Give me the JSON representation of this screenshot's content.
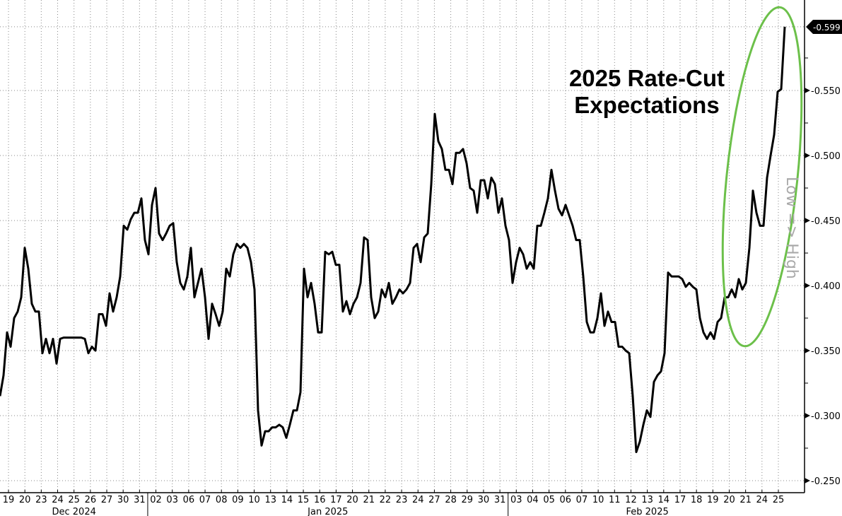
{
  "chart_data": {
    "type": "line",
    "title": "",
    "annotation": [
      "2025 Rate-Cut",
      "Expectations"
    ],
    "ylabel": "Low => High",
    "y_axis_side": "right",
    "y_inverted": true,
    "ylim": [
      -0.25,
      -0.605
    ],
    "yticks": [
      "-0.250",
      "-0.300",
      "-0.350",
      "-0.400",
      "-0.450",
      "-0.500",
      "-0.550"
    ],
    "last_value_label": "-0.599",
    "grid": true,
    "line_color": "#000000",
    "highlight_ellipse_color": "#6cc04a",
    "last_label_bg": "#000000",
    "x_start": "2024-12-19",
    "x_end": "2025-02-25",
    "x_tick_labels": [
      "19",
      "20",
      "23",
      "24",
      "25",
      "26",
      "27",
      "30",
      "31",
      "02",
      "03",
      "06",
      "07",
      "08",
      "09",
      "10",
      "13",
      "14",
      "15",
      "16",
      "17",
      "20",
      "21",
      "22",
      "23",
      "24",
      "27",
      "28",
      "29",
      "30",
      "31",
      "03",
      "04",
      "05",
      "06",
      "07",
      "10",
      "11",
      "12",
      "13",
      "14",
      "17",
      "18",
      "19",
      "20",
      "21",
      "24",
      "25"
    ],
    "months": [
      {
        "label": "Dec 2024",
        "first_tick": 0,
        "last_tick": 8
      },
      {
        "label": "Jan 2025",
        "first_tick": 9,
        "last_tick": 30
      },
      {
        "label": "Feb 2025",
        "first_tick": 31,
        "last_tick": 47
      }
    ],
    "series": [
      {
        "sampling": "evenly spaced intraday samples from x_start to x_end",
        "values": [
          -0.315,
          -0.331,
          -0.364,
          -0.353,
          -0.375,
          -0.38,
          -0.391,
          -0.429,
          -0.413,
          -0.386,
          -0.38,
          -0.38,
          -0.348,
          -0.359,
          -0.348,
          -0.359,
          -0.34,
          -0.359,
          -0.36,
          -0.36,
          -0.36,
          -0.36,
          -0.36,
          -0.36,
          -0.359,
          -0.348,
          -0.353,
          -0.35,
          -0.378,
          -0.378,
          -0.369,
          -0.394,
          -0.38,
          -0.391,
          -0.407,
          -0.446,
          -0.443,
          -0.451,
          -0.456,
          -0.456,
          -0.467,
          -0.435,
          -0.424,
          -0.462,
          -0.475,
          -0.44,
          -0.435,
          -0.44,
          -0.446,
          -0.448,
          -0.418,
          -0.402,
          -0.397,
          -0.407,
          -0.429,
          -0.391,
          -0.402,
          -0.413,
          -0.391,
          -0.359,
          -0.386,
          -0.378,
          -0.369,
          -0.38,
          -0.413,
          -0.407,
          -0.424,
          -0.432,
          -0.429,
          -0.432,
          -0.429,
          -0.418,
          -0.397,
          -0.304,
          -0.277,
          -0.288,
          -0.288,
          -0.291,
          -0.291,
          -0.293,
          -0.291,
          -0.283,
          -0.293,
          -0.304,
          -0.304,
          -0.318,
          -0.413,
          -0.391,
          -0.402,
          -0.386,
          -0.364,
          -0.364,
          -0.426,
          -0.424,
          -0.426,
          -0.416,
          -0.416,
          -0.38,
          -0.388,
          -0.378,
          -0.386,
          -0.391,
          -0.402,
          -0.437,
          -0.435,
          -0.391,
          -0.375,
          -0.38,
          -0.397,
          -0.391,
          -0.402,
          -0.386,
          -0.391,
          -0.397,
          -0.394,
          -0.397,
          -0.402,
          -0.429,
          -0.432,
          -0.418,
          -0.437,
          -0.44,
          -0.478,
          -0.532,
          -0.511,
          -0.505,
          -0.489,
          -0.489,
          -0.478,
          -0.502,
          -0.502,
          -0.505,
          -0.494,
          -0.475,
          -0.473,
          -0.456,
          -0.481,
          -0.481,
          -0.467,
          -0.483,
          -0.478,
          -0.456,
          -0.467,
          -0.446,
          -0.435,
          -0.402,
          -0.418,
          -0.429,
          -0.424,
          -0.413,
          -0.418,
          -0.413,
          -0.446,
          -0.446,
          -0.456,
          -0.467,
          -0.489,
          -0.473,
          -0.459,
          -0.454,
          -0.462,
          -0.454,
          -0.446,
          -0.435,
          -0.435,
          -0.407,
          -0.372,
          -0.364,
          -0.364,
          -0.375,
          -0.394,
          -0.369,
          -0.38,
          -0.372,
          -0.372,
          -0.353,
          -0.353,
          -0.35,
          -0.348,
          -0.315,
          -0.272,
          -0.28,
          -0.293,
          -0.304,
          -0.299,
          -0.326,
          -0.331,
          -0.334,
          -0.348,
          -0.41,
          -0.407,
          -0.407,
          -0.407,
          -0.405,
          -0.399,
          -0.402,
          -0.399,
          -0.397,
          -0.375,
          -0.364,
          -0.359,
          -0.364,
          -0.359,
          -0.372,
          -0.375,
          -0.391,
          -0.391,
          -0.397,
          -0.391,
          -0.405,
          -0.397,
          -0.402,
          -0.429,
          -0.473,
          -0.456,
          -0.446,
          -0.446,
          -0.483,
          -0.5,
          -0.516,
          -0.549,
          -0.551,
          -0.599
        ]
      }
    ]
  }
}
